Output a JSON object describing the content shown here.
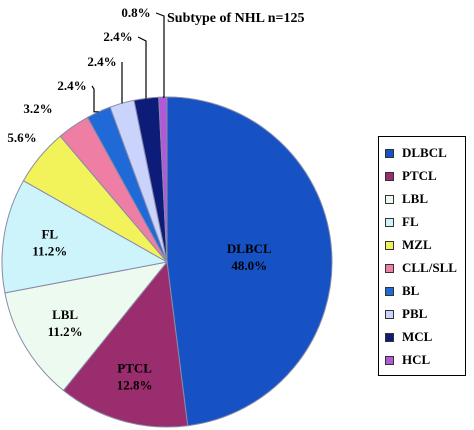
{
  "chart_data": {
    "type": "pie",
    "title": "Subtype of NHL n=125",
    "slices": [
      {
        "name": "DLBCL",
        "value": 48.0,
        "label": "48.0%",
        "color": "#1652c4"
      },
      {
        "name": "PTCL",
        "value": 12.8,
        "label": "12.8%",
        "color": "#9a2d6d"
      },
      {
        "name": "LBL",
        "value": 11.2,
        "label": "11.2%",
        "color": "#ecfaf0"
      },
      {
        "name": "FL",
        "value": 11.2,
        "label": "11.2%",
        "color": "#cdf4fb"
      },
      {
        "name": "MZL",
        "value": 5.6,
        "label": "5.6%",
        "color": "#f2f35a"
      },
      {
        "name": "CLL/SLL",
        "value": 3.2,
        "label": "3.2%",
        "color": "#ee7ea4"
      },
      {
        "name": "BL",
        "value": 2.4,
        "label": "2.4%",
        "color": "#1f6ad6"
      },
      {
        "name": "PBL",
        "value": 2.4,
        "label": "2.4%",
        "color": "#c9d3fb"
      },
      {
        "name": "MCL",
        "value": 2.4,
        "label": "2.4%",
        "color": "#0d1c78"
      },
      {
        "name": "HCL",
        "value": 0.8,
        "label": "0.8%",
        "color": "#b05ad8"
      }
    ],
    "legend": {
      "placement": "right",
      "entries": [
        "DLBCL",
        "PTCL",
        "LBL",
        "FL",
        "MZL",
        "CLL/SLL",
        "BL",
        "PBL",
        "MCL",
        "HCL"
      ]
    }
  }
}
